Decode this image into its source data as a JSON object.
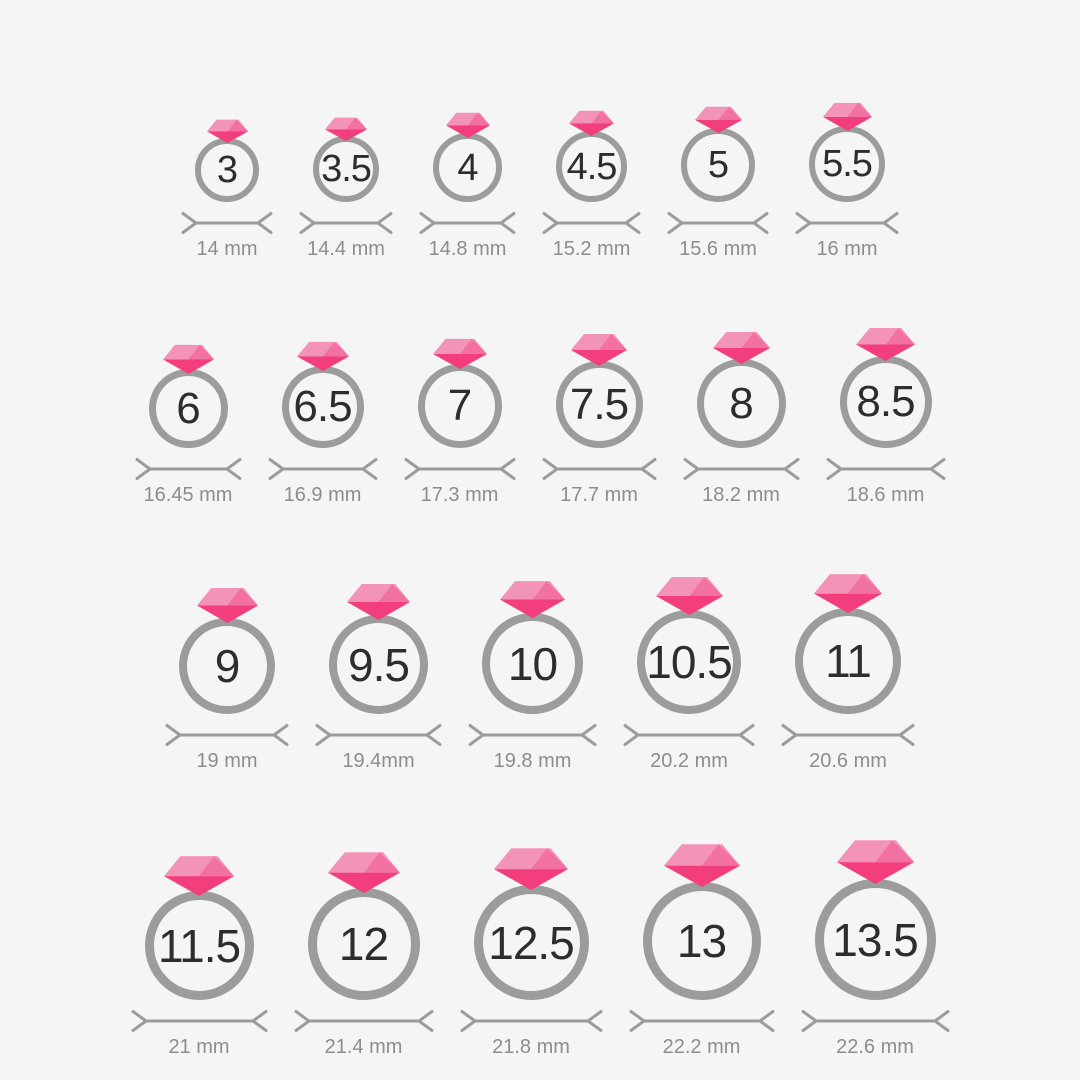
{
  "colors": {
    "background": "#f5f5f6",
    "ring_stroke": "#9c9c9c",
    "measure_line": "#9c9c9c",
    "size_text": "#2d2d2d",
    "mm_text": "#8d8d8d",
    "diamond_light": "#f493b8",
    "diamond_facet": "#f171a3",
    "diamond_dark": "#f23e7c"
  },
  "rows": [
    {
      "rings": [
        {
          "size": "3",
          "diameter": "14 mm"
        },
        {
          "size": "3.5",
          "diameter": "14.4 mm"
        },
        {
          "size": "4",
          "diameter": "14.8 mm"
        },
        {
          "size": "4.5",
          "diameter": "15.2 mm"
        },
        {
          "size": "5",
          "diameter": "15.6 mm"
        },
        {
          "size": "5.5",
          "diameter": "16 mm"
        }
      ]
    },
    {
      "rings": [
        {
          "size": "6",
          "diameter": "16.45 mm"
        },
        {
          "size": "6.5",
          "diameter": "16.9 mm"
        },
        {
          "size": "7",
          "diameter": "17.3 mm"
        },
        {
          "size": "7.5",
          "diameter": "17.7 mm"
        },
        {
          "size": "8",
          "diameter": "18.2 mm"
        },
        {
          "size": "8.5",
          "diameter": "18.6 mm"
        }
      ]
    },
    {
      "rings": [
        {
          "size": "9",
          "diameter": "19 mm"
        },
        {
          "size": "9.5",
          "diameter": "19.4mm"
        },
        {
          "size": "10",
          "diameter": "19.8 mm"
        },
        {
          "size": "10.5",
          "diameter": "20.2 mm"
        },
        {
          "size": "11",
          "diameter": "20.6 mm"
        }
      ]
    },
    {
      "rings": [
        {
          "size": "11.5",
          "diameter": "21 mm"
        },
        {
          "size": "12",
          "diameter": "21.4 mm"
        },
        {
          "size": "12.5",
          "diameter": "21.8 mm"
        },
        {
          "size": "13",
          "diameter": "22.2 mm"
        },
        {
          "size": "13.5",
          "diameter": "22.6 mm"
        }
      ]
    }
  ]
}
